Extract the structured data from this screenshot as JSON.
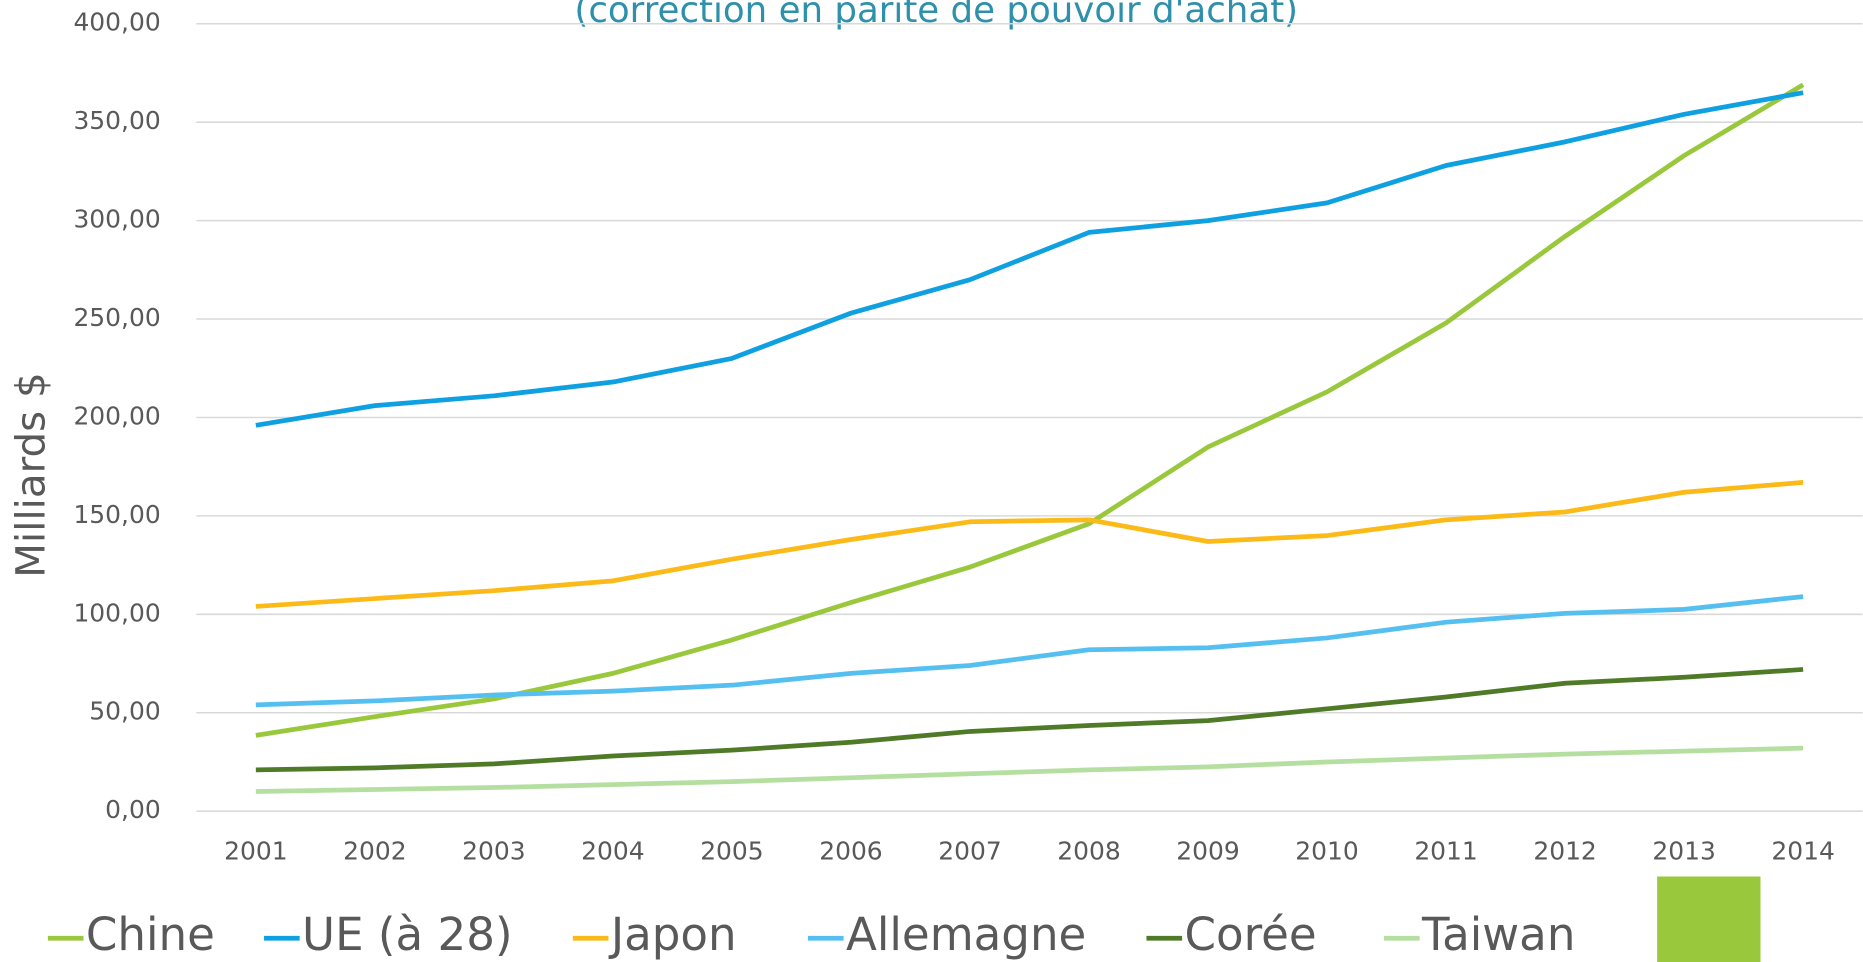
{
  "chart_data": {
    "type": "line",
    "title": "(correction en parité de pouvoir d'achat)",
    "y_label": "Milliards $",
    "categories": [
      "2001",
      "2002",
      "2003",
      "2004",
      "2005",
      "2006",
      "2007",
      "2008",
      "2009",
      "2010",
      "2011",
      "2012",
      "2013",
      "2014"
    ],
    "series": [
      {
        "name": "Chine",
        "color": "#9ac83c",
        "values": [
          38.5,
          48,
          57,
          70,
          87,
          106,
          124,
          146,
          185,
          213,
          248,
          292,
          333,
          369
        ]
      },
      {
        "name": "UE (à 28)",
        "color": "#0ea0e0",
        "values": [
          196,
          206,
          211,
          218,
          230,
          253,
          270,
          294,
          300,
          309,
          328,
          340,
          354,
          365
        ]
      },
      {
        "name": "Japon",
        "color": "#fbba17",
        "values": [
          104,
          108,
          112,
          117,
          128,
          138,
          147,
          148,
          137,
          140,
          148,
          152,
          162,
          167
        ]
      },
      {
        "name": "Allemagne",
        "color": "#55c0f0",
        "values": [
          54,
          56,
          59,
          61,
          64,
          70,
          74,
          82,
          83,
          88,
          96,
          100.5,
          102.5,
          109
        ]
      },
      {
        "name": "Corée",
        "color": "#4f7a28",
        "values": [
          21,
          22,
          24,
          28,
          31,
          35,
          40.5,
          43.5,
          46,
          52,
          58,
          65,
          68,
          72
        ]
      },
      {
        "name": "Taiwan",
        "color": "#b5dfa0",
        "values": [
          10,
          11,
          12,
          13.5,
          15,
          17,
          19,
          21,
          22.5,
          25,
          27,
          29,
          30.5,
          32
        ]
      }
    ],
    "ylim": [
      0,
      400
    ],
    "yticks": [
      {
        "value": 0,
        "label": "0,00"
      },
      {
        "value": 50,
        "label": "50,00"
      },
      {
        "value": 100,
        "label": "100,00"
      },
      {
        "value": 150,
        "label": "150,00"
      },
      {
        "value": 200,
        "label": "200,00"
      },
      {
        "value": 250,
        "label": "250,00"
      },
      {
        "value": 300,
        "label": "300,00"
      },
      {
        "value": 350,
        "label": "350,00"
      },
      {
        "value": 400,
        "label": "400,00"
      }
    ],
    "grid": true
  }
}
